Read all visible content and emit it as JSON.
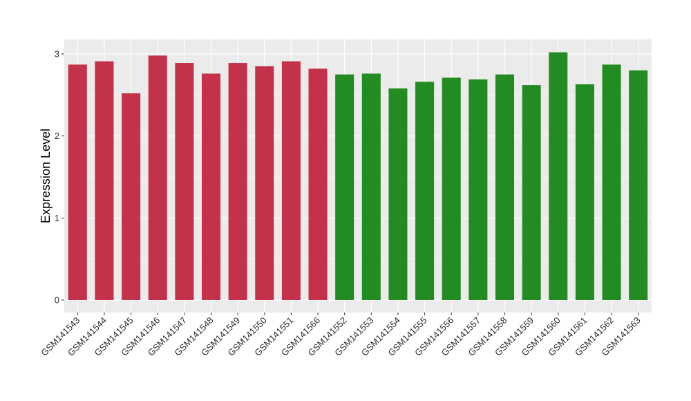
{
  "chart_data": {
    "type": "bar",
    "title": "",
    "xlabel": "",
    "ylabel": "Expression Level",
    "ylim": [
      0,
      3.15
    ],
    "yticks": [
      0,
      1,
      2,
      3
    ],
    "grid": true,
    "legend": "none",
    "background_color": "#ebebeb",
    "grid_color": "#ffffff",
    "group_colors": {
      "red": "#c4314b",
      "green": "#228b22"
    },
    "categories": [
      "GSM141543",
      "GSM141544",
      "GSM141545",
      "GSM141546",
      "GSM141547",
      "GSM141548",
      "GSM141549",
      "GSM141550",
      "GSM141551",
      "GSM141566",
      "GSM141552",
      "GSM141553",
      "GSM141554",
      "GSM141555",
      "GSM141556",
      "GSM141557",
      "GSM141558",
      "GSM141559",
      "GSM141560",
      "GSM141561",
      "GSM141562",
      "GSM141563"
    ],
    "values": [
      2.87,
      2.91,
      2.52,
      2.98,
      2.89,
      2.76,
      2.89,
      2.85,
      2.91,
      2.82,
      2.75,
      2.76,
      2.58,
      2.66,
      2.71,
      2.69,
      2.75,
      2.62,
      3.02,
      2.63,
      2.87,
      2.8
    ],
    "bar_groups": [
      "red",
      "red",
      "red",
      "red",
      "red",
      "red",
      "red",
      "red",
      "red",
      "red",
      "green",
      "green",
      "green",
      "green",
      "green",
      "green",
      "green",
      "green",
      "green",
      "green",
      "green",
      "green"
    ]
  }
}
